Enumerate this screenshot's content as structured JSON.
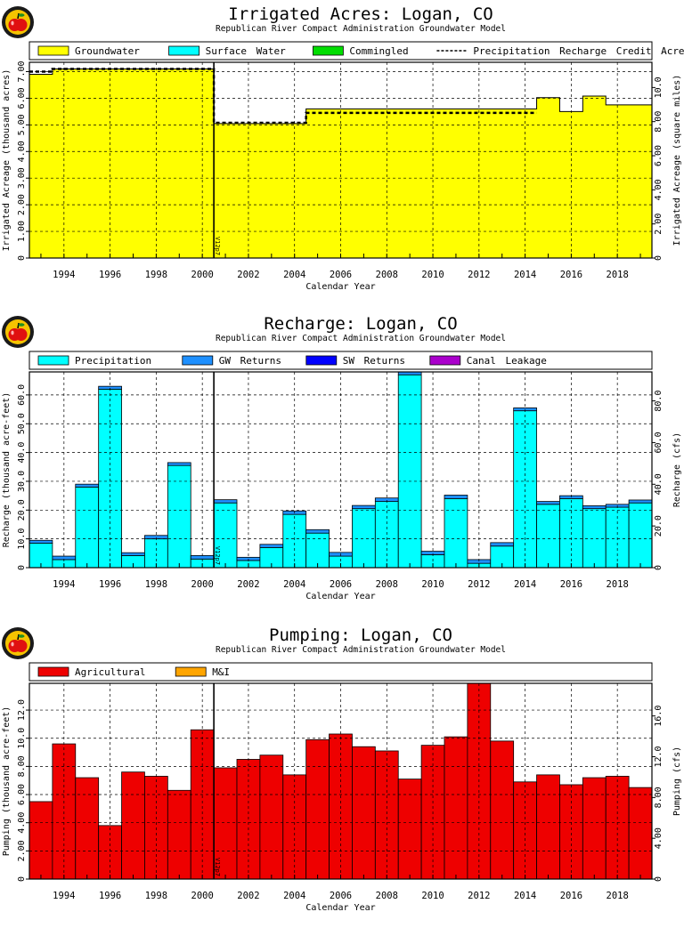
{
  "year_label": "Calendar Year",
  "subtitle": "Republican River Compact Administration Groundwater Model",
  "marker_label": "V12p7",
  "logo_colors": {
    "ring": "#1a1a1a",
    "inner": "#f5c400",
    "apple": "#e01010",
    "leaf": "#1f8f1f"
  },
  "chart_data": [
    {
      "type": "area",
      "title": "Irrigated Acres: Logan, CO",
      "subtitle": "Republican River Compact Administration Groundwater Model",
      "xlabel": "Calendar Year",
      "ylabel": "Irrigated Acreage (thousand acres)",
      "ylabel_right": "Irrigated Acreage (square miles)",
      "x_range": [
        1992.5,
        2019.5
      ],
      "ylim": [
        0,
        7.35
      ],
      "y_ticks": [
        0,
        1.0,
        2.0,
        3.0,
        4.0,
        5.0,
        6.0,
        7.0
      ],
      "y_tick_labels": [
        "0",
        "1.00",
        "2.00",
        "3.00",
        "4.00",
        "5.00",
        "6.00",
        "7.00"
      ],
      "ylim_right": [
        0,
        11.48
      ],
      "y_ticks_right": [
        0,
        2,
        4,
        6,
        8,
        10
      ],
      "y_tick_labels_right": [
        "0",
        "2.00",
        "4.00",
        "6.00",
        "8.00",
        "10.0"
      ],
      "x_tick_labels": [
        "1994",
        "1996",
        "1998",
        "2000",
        "2002",
        "2004",
        "2006",
        "2008",
        "2010",
        "2012",
        "2014",
        "2016",
        "2018"
      ],
      "x_ticks": [
        1994,
        1996,
        1998,
        2000,
        2002,
        2004,
        2006,
        2008,
        2010,
        2012,
        2014,
        2016,
        2018
      ],
      "vline_x": 2000.5,
      "grid": true,
      "legend_position": "top",
      "years": [
        1993,
        1994,
        1995,
        1996,
        1997,
        1998,
        1999,
        2000,
        2001,
        2002,
        2003,
        2004,
        2005,
        2006,
        2007,
        2008,
        2009,
        2010,
        2011,
        2012,
        2013,
        2014,
        2015,
        2016,
        2017,
        2018,
        2019
      ],
      "series": [
        {
          "name": "Groundwater",
          "color": "#ffff00",
          "values": [
            6.9,
            7.1,
            7.1,
            7.1,
            7.1,
            7.1,
            7.1,
            7.1,
            5.05,
            5.05,
            5.05,
            5.05,
            5.6,
            5.6,
            5.6,
            5.6,
            5.6,
            5.6,
            5.6,
            5.6,
            5.6,
            5.6,
            6.02,
            5.5,
            6.08,
            5.75,
            5.75
          ]
        },
        {
          "name": "Surface Water",
          "color": "#00ffff",
          "values": [
            0,
            0,
            0,
            0,
            0,
            0,
            0,
            0,
            0,
            0,
            0,
            0,
            0,
            0,
            0,
            0,
            0,
            0,
            0,
            0,
            0,
            0,
            0,
            0,
            0,
            0,
            0
          ]
        },
        {
          "name": "Commingled",
          "color": "#00dd00",
          "values": [
            0,
            0,
            0,
            0,
            0,
            0,
            0,
            0,
            0,
            0,
            0,
            0,
            0,
            0,
            0,
            0,
            0,
            0,
            0,
            0,
            0,
            0,
            0,
            0,
            0,
            0,
            0
          ]
        }
      ],
      "line_series": {
        "name": "Precipitation Recharge Credit Acreage",
        "values": [
          7.0,
          7.1,
          7.1,
          7.1,
          7.1,
          7.1,
          7.1,
          7.1,
          5.08,
          5.08,
          5.08,
          5.08,
          5.45,
          5.45,
          5.45,
          5.45,
          5.45,
          5.45,
          5.45,
          5.45,
          5.45,
          5.45,
          null,
          null,
          null,
          null,
          null
        ]
      }
    },
    {
      "type": "bar",
      "title": "Recharge: Logan, CO",
      "subtitle": "Republican River Compact Administration Groundwater Model",
      "xlabel": "Calendar Year",
      "ylabel": "Recharge (thousand acre-feet)",
      "ylabel_right": "Recharge (cfs)",
      "x_range": [
        1992.5,
        2019.5
      ],
      "ylim": [
        0,
        68
      ],
      "y_ticks": [
        0,
        10,
        20,
        30,
        40,
        50,
        60
      ],
      "y_tick_labels": [
        "0",
        "10.0",
        "20.0",
        "30.0",
        "40.0",
        "50.0",
        "60.0"
      ],
      "ylim_right": [
        0,
        93.9
      ],
      "y_ticks_right": [
        0,
        20,
        40,
        60,
        80
      ],
      "y_tick_labels_right": [
        "0",
        "20.0",
        "40.0",
        "60.0",
        "80.0"
      ],
      "x_tick_labels": [
        "1994",
        "1996",
        "1998",
        "2000",
        "2002",
        "2004",
        "2006",
        "2008",
        "2010",
        "2012",
        "2014",
        "2016",
        "2018"
      ],
      "x_ticks": [
        1994,
        1996,
        1998,
        2000,
        2002,
        2004,
        2006,
        2008,
        2010,
        2012,
        2014,
        2016,
        2018
      ],
      "vline_x": 2000.5,
      "grid": true,
      "legend_position": "top",
      "years": [
        1993,
        1994,
        1995,
        1996,
        1997,
        1998,
        1999,
        2000,
        2001,
        2002,
        2003,
        2004,
        2005,
        2006,
        2007,
        2008,
        2009,
        2010,
        2011,
        2012,
        2013,
        2014,
        2015,
        2016,
        2017,
        2018,
        2019
      ],
      "series": [
        {
          "name": "Precipitation",
          "color": "#00ffff",
          "values": [
            8.5,
            2.8,
            28.0,
            62.0,
            4.2,
            10.0,
            35.5,
            3.0,
            22.5,
            2.5,
            7.0,
            18.5,
            12.0,
            4.0,
            20.5,
            23.0,
            67.0,
            4.5,
            24.0,
            1.5,
            7.5,
            54.5,
            22.0,
            24.0,
            20.5,
            21.0,
            22.5
          ]
        },
        {
          "name": "GW Returns",
          "color": "#1e90ff",
          "values": [
            1.0,
            1.2,
            1.0,
            1.0,
            1.0,
            1.2,
            1.0,
            1.2,
            1.1,
            1.1,
            1.1,
            1.2,
            1.2,
            1.3,
            1.1,
            1.2,
            1.0,
            1.2,
            1.2,
            1.3,
            1.2,
            1.0,
            1.0,
            1.0,
            1.0,
            1.0,
            1.0
          ]
        },
        {
          "name": "SW Returns",
          "color": "#0000ff",
          "values": [
            0,
            0,
            0,
            0,
            0,
            0,
            0,
            0,
            0,
            0,
            0,
            0,
            0,
            0,
            0,
            0,
            0,
            0,
            0,
            0,
            0,
            0,
            0,
            0,
            0,
            0,
            0
          ]
        },
        {
          "name": "Canal Leakage",
          "color": "#aa00cc",
          "values": [
            0,
            0,
            0,
            0,
            0,
            0,
            0,
            0,
            0,
            0,
            0,
            0,
            0,
            0,
            0,
            0,
            0,
            0,
            0,
            0,
            0,
            0,
            0,
            0,
            0,
            0,
            0
          ]
        }
      ]
    },
    {
      "type": "bar",
      "title": "Pumping: Logan, CO",
      "subtitle": "Republican River Compact Administration Groundwater Model",
      "xlabel": "Calendar Year",
      "ylabel": "Pumping (thousand acre-feet)",
      "ylabel_right": "Pumping (cfs)",
      "x_range": [
        1992.5,
        2019.5
      ],
      "ylim": [
        0,
        13.9
      ],
      "y_ticks": [
        0,
        2,
        4,
        6,
        8,
        10,
        12
      ],
      "y_tick_labels": [
        "0",
        "2.00",
        "4.00",
        "6.00",
        "8.00",
        "10.0",
        "12.0"
      ],
      "ylim_right": [
        0,
        19.2
      ],
      "y_ticks_right": [
        0,
        4,
        8,
        12,
        16
      ],
      "y_tick_labels_right": [
        "0",
        "4.00",
        "8.00",
        "12.0",
        "16.0"
      ],
      "x_tick_labels": [
        "1994",
        "1996",
        "1998",
        "2000",
        "2002",
        "2004",
        "2006",
        "2008",
        "2010",
        "2012",
        "2014",
        "2016",
        "2018"
      ],
      "x_ticks": [
        1994,
        1996,
        1998,
        2000,
        2002,
        2004,
        2006,
        2008,
        2010,
        2012,
        2014,
        2016,
        2018
      ],
      "vline_x": 2000.5,
      "grid": true,
      "legend_position": "top",
      "years": [
        1993,
        1994,
        1995,
        1996,
        1997,
        1998,
        1999,
        2000,
        2001,
        2002,
        2003,
        2004,
        2005,
        2006,
        2007,
        2008,
        2009,
        2010,
        2011,
        2012,
        2013,
        2014,
        2015,
        2016,
        2017,
        2018,
        2019
      ],
      "series": [
        {
          "name": "Agricultural",
          "color": "#ee0000",
          "values": [
            5.5,
            9.6,
            7.2,
            3.8,
            7.6,
            7.3,
            6.3,
            10.6,
            7.9,
            8.5,
            8.8,
            7.4,
            9.9,
            10.3,
            9.4,
            9.1,
            7.1,
            9.5,
            10.1,
            13.9,
            9.8,
            6.9,
            7.4,
            6.7,
            7.2,
            7.3,
            6.5
          ]
        },
        {
          "name": "M&I",
          "color": "#ffa500",
          "values": [
            0,
            0,
            0,
            0,
            0,
            0,
            0,
            0,
            0,
            0,
            0,
            0,
            0,
            0,
            0,
            0,
            0,
            0,
            0,
            0,
            0,
            0,
            0,
            0,
            0,
            0,
            0
          ]
        }
      ]
    }
  ]
}
